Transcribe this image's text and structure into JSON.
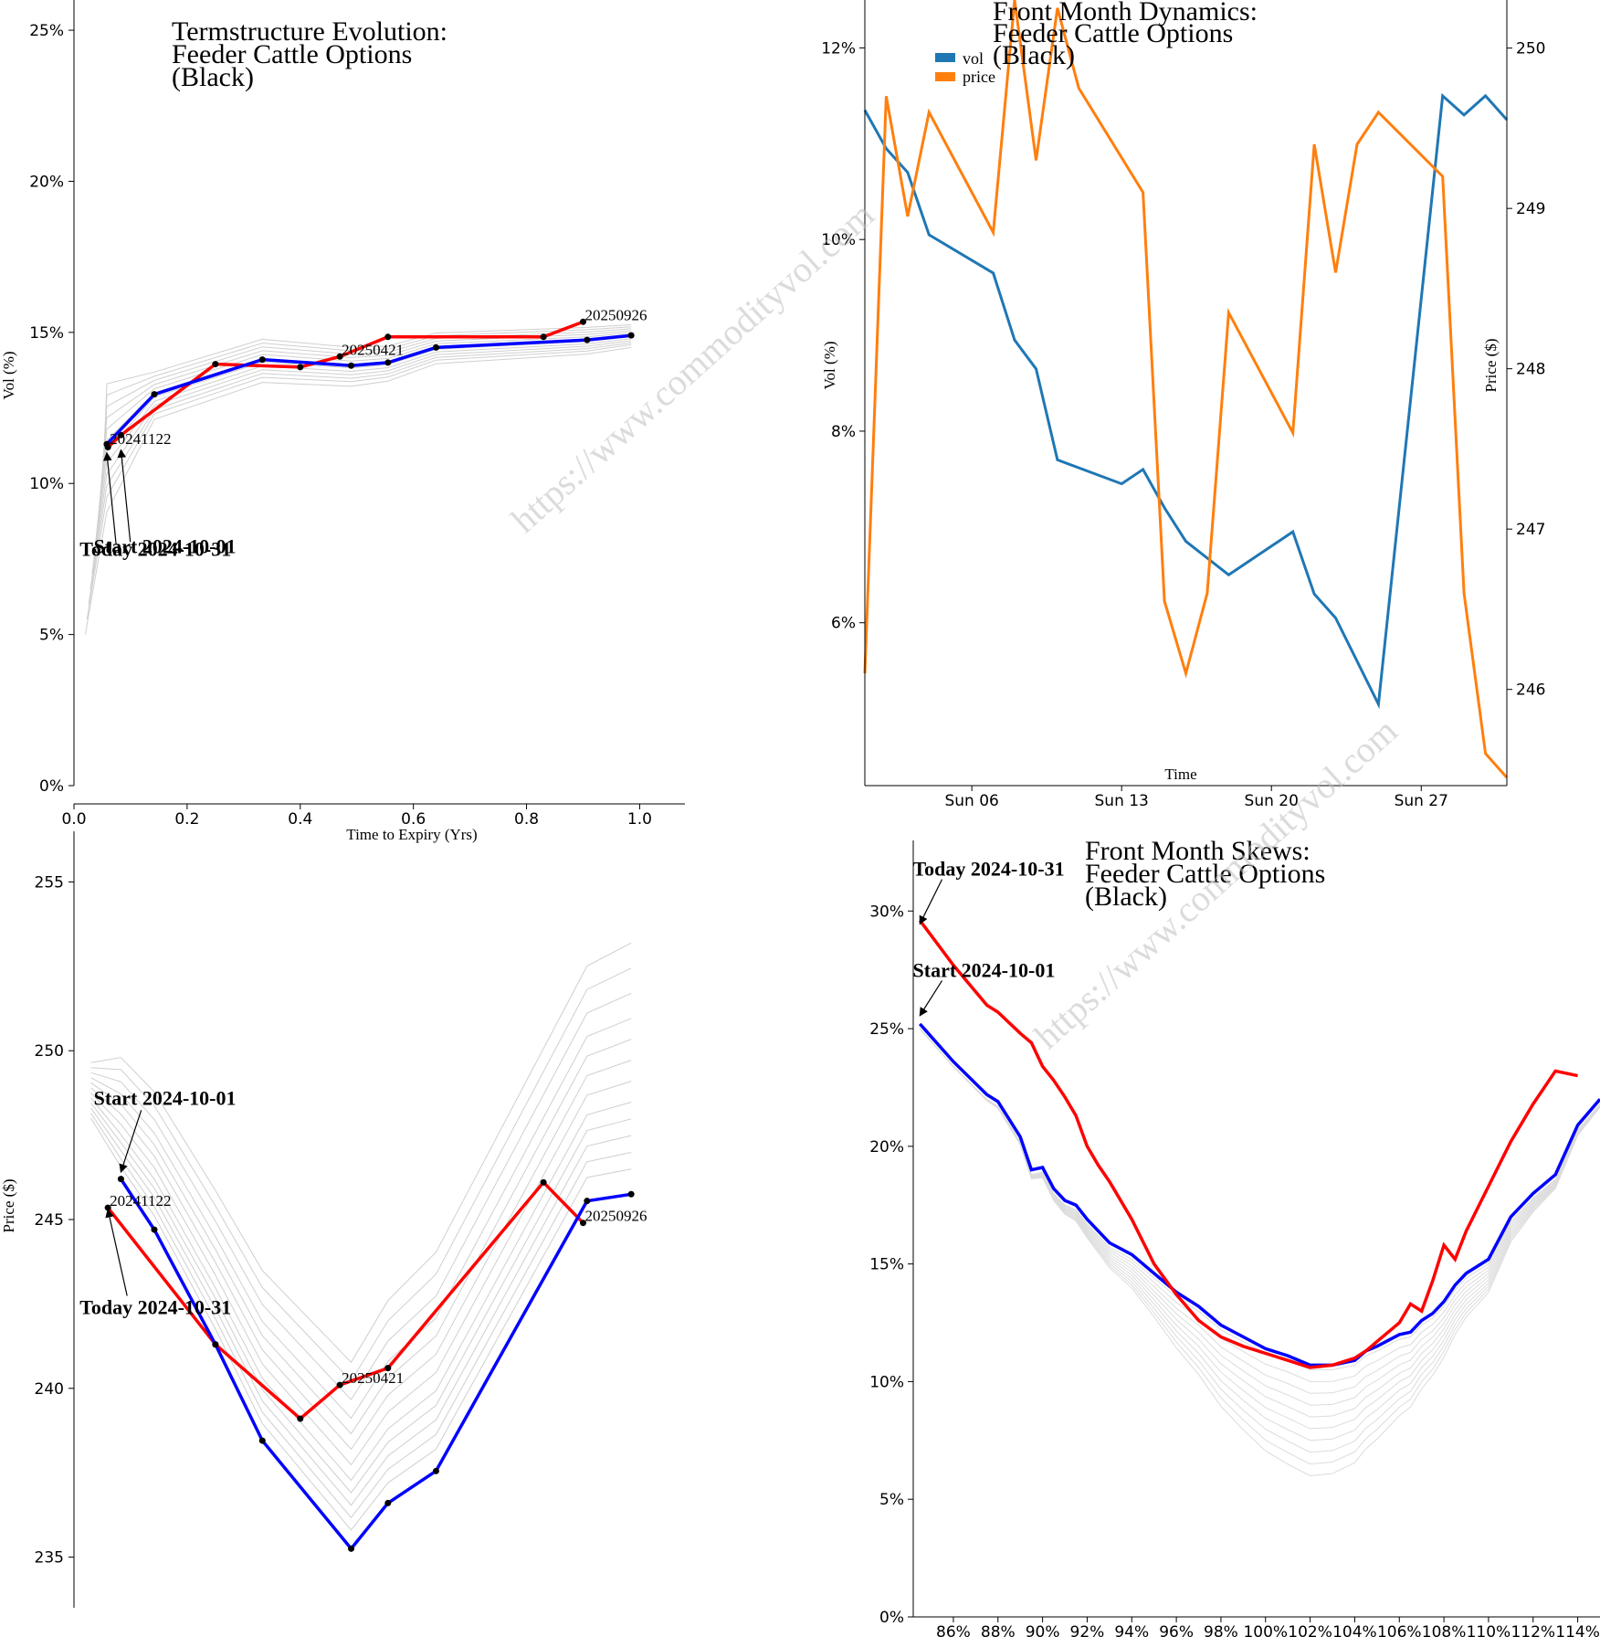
{
  "watermark": "https://www.commodityvol.com",
  "colors": {
    "current": "#0000ff",
    "start": "#ff0000",
    "history": "#cfcfcf",
    "vol": "#1f77b4",
    "price": "#ff7f0e"
  },
  "chart_data": [
    {
      "id": "termstructure",
      "type": "line",
      "title": [
        "Termstructure Evolution:",
        "Feeder Cattle Options",
        "(Black)"
      ],
      "xlabel": "Time to Expiry (Yrs)",
      "ylabel": "Vol (%)",
      "xlim": [
        0,
        1.08
      ],
      "ylim": [
        0,
        26
      ],
      "xticks": [
        0,
        0.2,
        0.4,
        0.6,
        0.8,
        1.0
      ],
      "xtick_labels": [
        "0.0",
        "0.2",
        "0.4",
        "0.6",
        "0.8",
        "1.0"
      ],
      "yticks": [
        0,
        5,
        10,
        15,
        20,
        25
      ],
      "ytick_labels": [
        "0%",
        "5%",
        "10%",
        "15%",
        "20%",
        "25%"
      ],
      "series": [
        {
          "name": "Today 2024-10-31",
          "role": "current",
          "x": [
            0.058,
            0.142,
            0.333,
            0.49,
            0.555,
            0.64,
            0.907,
            0.985
          ],
          "y": [
            11.3,
            12.95,
            14.1,
            13.9,
            14.0,
            14.5,
            14.75,
            14.9
          ]
        },
        {
          "name": "Start 2024-10-01",
          "role": "start",
          "x": [
            0.06,
            0.083,
            0.25,
            0.4,
            0.47,
            0.555,
            0.83,
            0.9
          ],
          "y": [
            11.2,
            11.6,
            13.95,
            13.85,
            14.2,
            14.85,
            14.85,
            15.35
          ]
        }
      ],
      "history_offsets": [
        -0.9,
        -0.7,
        -0.55,
        -0.4,
        -0.25,
        -0.1,
        0.05,
        0.2,
        0.35,
        0.5,
        0.65,
        0.8
      ],
      "point_labels": [
        {
          "text": "20241122",
          "x": 0.06,
          "y": 11.25
        },
        {
          "text": "20250421",
          "x": 0.47,
          "y": 14.2
        },
        {
          "text": "20250926",
          "x": 0.9,
          "y": 15.35
        }
      ],
      "annotations": [
        {
          "text": "Start 2024-10-01",
          "tx": 0.035,
          "ty": 7.7,
          "ax": 0.083,
          "ay": 11.2
        },
        {
          "text": "Today 2024-10-31",
          "tx": 0.01,
          "ty": 7.6,
          "ax": 0.058,
          "ay": 11.1
        }
      ]
    },
    {
      "id": "dynamics",
      "type": "line",
      "title": [
        "Front Month Dynamics:",
        "Feeder Cattle Options",
        "(Black)"
      ],
      "xlabel": "Time",
      "ylabel": "Vol (%)",
      "y2label": "Price ($)",
      "xlim": [
        1,
        31
      ],
      "ylim": [
        4.3,
        12.5
      ],
      "y2lim": [
        245.4,
        250.3
      ],
      "xticks": [
        6,
        13,
        20,
        27
      ],
      "xtick_labels": [
        "Sun 06",
        "Sun 13",
        "Sun 20",
        "Sun 27"
      ],
      "yticks": [
        6,
        8,
        10,
        12
      ],
      "ytick_labels": [
        "6%",
        "8%",
        "10%",
        "12%"
      ],
      "y2ticks": [
        246,
        247,
        248,
        249,
        250
      ],
      "y2tick_labels": [
        "246",
        "247",
        "248",
        "249",
        "250"
      ],
      "legend": [
        {
          "label": "vol",
          "role": "vol"
        },
        {
          "label": "price",
          "role": "price"
        }
      ],
      "series": [
        {
          "name": "vol",
          "role": "vol",
          "axis": "left",
          "x": [
            1,
            2,
            3,
            4,
            7,
            8,
            9,
            10,
            13,
            14,
            15,
            16,
            18,
            21,
            22,
            23,
            25,
            28,
            29,
            30,
            31
          ],
          "y": [
            11.35,
            10.95,
            10.7,
            10.05,
            9.65,
            8.95,
            8.65,
            7.7,
            7.45,
            7.6,
            7.2,
            6.85,
            6.5,
            6.95,
            6.3,
            6.05,
            5.15,
            11.5,
            11.3,
            11.5,
            11.25
          ]
        },
        {
          "name": "price",
          "role": "price",
          "axis": "right",
          "x": [
            1,
            2,
            3,
            4,
            7,
            8,
            9,
            10,
            11,
            14,
            15,
            16,
            17,
            18,
            21,
            22,
            23,
            24,
            25,
            28,
            29,
            30,
            31
          ],
          "y": [
            246.1,
            249.7,
            248.95,
            249.6,
            248.85,
            250.3,
            249.3,
            250.25,
            249.75,
            249.1,
            246.55,
            246.1,
            246.6,
            248.35,
            247.6,
            249.4,
            248.6,
            249.4,
            249.6,
            249.2,
            246.6,
            245.6,
            245.45
          ]
        }
      ]
    },
    {
      "id": "pricestructure",
      "type": "line",
      "title": [],
      "xlabel": "",
      "ylabel": "Price ($)",
      "xlim": [
        0,
        1.08
      ],
      "ylim": [
        233.5,
        256.5
      ],
      "yticks": [
        235,
        240,
        245,
        250,
        255
      ],
      "ytick_labels": [
        "235",
        "240",
        "245",
        "250",
        "255"
      ],
      "series": [
        {
          "name": "Today 2024-10-31",
          "role": "current",
          "x": [
            0.083,
            0.142,
            0.25,
            0.333,
            0.49,
            0.555,
            0.64,
            0.907,
            0.985
          ],
          "y": [
            246.2,
            244.7,
            241.3,
            238.45,
            235.25,
            236.6,
            237.55,
            245.55,
            245.75
          ]
        },
        {
          "name": "Start 2024-10-01",
          "role": "start",
          "x": [
            0.06,
            0.25,
            0.4,
            0.47,
            0.555,
            0.83,
            0.9
          ],
          "y": [
            245.35,
            241.3,
            239.1,
            240.1,
            240.6,
            246.1,
            244.9
          ]
        }
      ],
      "history_offsets": [
        0.6,
        1.0,
        1.4,
        1.8,
        2.2,
        2.7,
        3.2,
        3.7,
        4.2,
        4.8,
        5.4,
        6.0
      ],
      "point_labels": [
        {
          "text": "20241122",
          "x": 0.06,
          "y": 245.35
        },
        {
          "text": "20250421",
          "x": 0.47,
          "y": 240.1
        },
        {
          "text": "20250926",
          "x": 0.9,
          "y": 244.9
        }
      ],
      "annotations": [
        {
          "text": "Start 2024-10-01",
          "tx": 0.035,
          "ty": 248.4,
          "ax": 0.083,
          "ay": 246.3
        },
        {
          "text": "Today 2024-10-31",
          "tx": 0.01,
          "ty": 242.2,
          "ax": 0.06,
          "ay": 245.4
        }
      ]
    },
    {
      "id": "skews",
      "type": "line",
      "title": [
        "Front Month Skews:",
        "Feeder Cattle Options",
        "(Black)"
      ],
      "xlabel": "",
      "ylabel": "",
      "xlim": [
        84.2,
        115
      ],
      "ylim": [
        0,
        33
      ],
      "xticks": [
        86,
        88,
        90,
        92,
        94,
        96,
        98,
        100,
        102,
        104,
        106,
        108,
        110,
        112,
        114
      ],
      "xtick_labels": [
        "86%",
        "88%",
        "90%",
        "92%",
        "94%",
        "96%",
        "98%",
        "100%",
        "102%",
        "104%",
        "106%",
        "108%",
        "110%",
        "112%",
        "114%"
      ],
      "yticks": [
        0,
        5,
        10,
        15,
        20,
        25,
        30
      ],
      "ytick_labels": [
        "0%",
        "5%",
        "10%",
        "15%",
        "20%",
        "25%",
        "30%"
      ],
      "series": [
        {
          "name": "Today 2024-10-31",
          "role": "current",
          "x": [
            84.5,
            86,
            87.5,
            88,
            89,
            89.5,
            90,
            90.5,
            91,
            91.5,
            92,
            93,
            94,
            95,
            96,
            97,
            98,
            99,
            100,
            101,
            102,
            103,
            104,
            104.5,
            105,
            106,
            106.5,
            107,
            107.5,
            108,
            108.5,
            109,
            110,
            110.5,
            111,
            112,
            113,
            114,
            115
          ],
          "y": [
            25.2,
            23.6,
            22.2,
            21.9,
            20.4,
            19.0,
            19.1,
            18.2,
            17.7,
            17.5,
            16.9,
            15.9,
            15.4,
            14.6,
            13.8,
            13.2,
            12.4,
            11.9,
            11.4,
            11.1,
            10.7,
            10.7,
            10.9,
            11.3,
            11.5,
            12.0,
            12.1,
            12.6,
            12.9,
            13.4,
            14.1,
            14.6,
            15.2,
            16.1,
            17.0,
            18.0,
            18.8,
            20.9,
            22.0
          ]
        },
        {
          "name": "Start 2024-10-01",
          "role": "start",
          "x": [
            84.5,
            86,
            87.5,
            88,
            89,
            89.5,
            90,
            90.5,
            91,
            91.5,
            92,
            92.5,
            93,
            94,
            95,
            96,
            97,
            98,
            99,
            100,
            101,
            102,
            103,
            104,
            104.5,
            105,
            106,
            106.5,
            107,
            107.5,
            108,
            108.5,
            109,
            110,
            111,
            112,
            113,
            114
          ],
          "y": [
            29.6,
            27.7,
            26.0,
            25.7,
            24.8,
            24.4,
            23.4,
            22.8,
            22.1,
            21.3,
            20.0,
            19.2,
            18.5,
            16.9,
            15.0,
            13.7,
            12.6,
            11.9,
            11.5,
            11.2,
            10.9,
            10.6,
            10.7,
            11.0,
            11.3,
            11.7,
            12.5,
            13.3,
            13.0,
            14.3,
            15.8,
            15.2,
            16.4,
            18.3,
            20.2,
            21.8,
            23.2,
            23.0
          ]
        }
      ],
      "history_offsets": [
        -4.5,
        -4.0,
        -3.5,
        -3.0,
        -2.5,
        -2.0,
        -1.5,
        -1.0,
        -0.5,
        0.0
      ],
      "annotations": [
        {
          "text": "Today 2024-10-31",
          "tx": 85.0,
          "ty": 31.5,
          "ax": 84.5,
          "ay": 29.3
        },
        {
          "text": "Start 2024-10-01",
          "tx": 85.0,
          "ty": 27.2,
          "ax": 84.5,
          "ay": 25.4
        }
      ]
    }
  ]
}
